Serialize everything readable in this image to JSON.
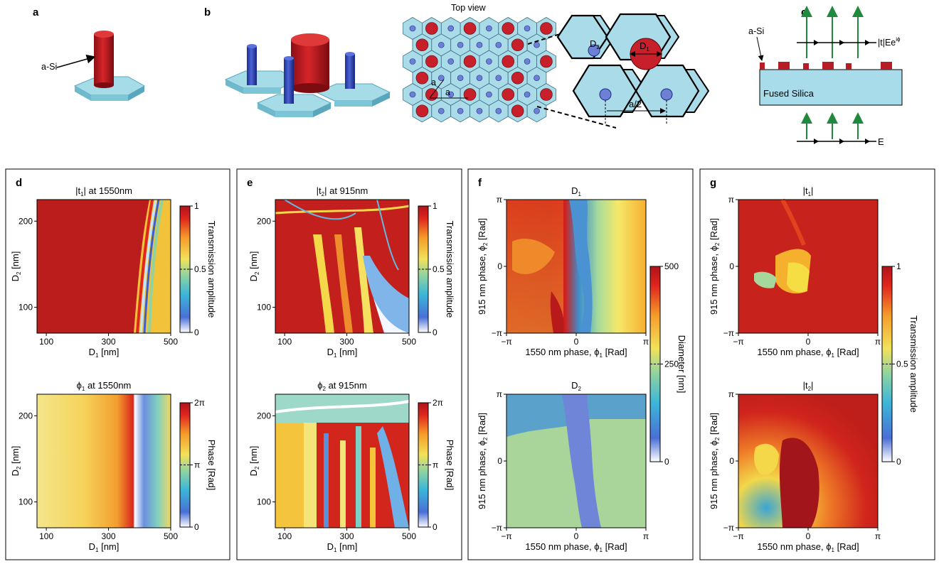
{
  "top": {
    "panel_a": {
      "letter": "a",
      "label": "a-Si"
    },
    "panel_b": {
      "letter": "b",
      "title": "Top view",
      "lattice_a1": "a",
      "lattice_a2": "a",
      "zoom_d2": "D",
      "zoom_d2_sub": "2",
      "zoom_d1": "D",
      "zoom_d1_sub": "1",
      "zoom_a2": "a/2"
    },
    "panel_c": {
      "letter": "c",
      "label_si": "a-Si",
      "out_label": "|t|Ee",
      "out_sup": "iϕ",
      "substrate": "Fused Silica",
      "in_label": "E"
    }
  },
  "panels": {
    "d": {
      "letter": "d",
      "top": {
        "title_pre": "|t",
        "title_sub": "1",
        "title_post": "| at 1550nm",
        "xticks": [
          "100",
          "300",
          "500"
        ],
        "yticks": [
          "200",
          "100"
        ],
        "xlabel": "D",
        "xlabel_sub": "1",
        "xlabel_post": " [nm]",
        "ylabel": "D",
        "ylabel_sub": "2",
        "ylabel_post": " [nm]",
        "cbar_ticks": [
          "1",
          "0.5",
          "0"
        ],
        "cbar_label": "Transmission amplitude"
      },
      "bottom": {
        "title_pre": "ϕ",
        "title_sub": "1",
        "title_post": " at 1550nm",
        "xticks": [
          "100",
          "300",
          "500"
        ],
        "yticks": [
          "200",
          "100"
        ],
        "xlabel": "D",
        "xlabel_sub": "1",
        "xlabel_post": " [nm]",
        "ylabel": "D",
        "ylabel_sub": "2",
        "ylabel_post": " [nm]",
        "cbar_ticks": [
          "2π",
          "π",
          "0"
        ],
        "cbar_label": "Phase [Rad]"
      }
    },
    "e": {
      "letter": "e",
      "top": {
        "title_pre": "|t",
        "title_sub": "2",
        "title_post": "| at  915nm",
        "xticks": [
          "100",
          "300",
          "500"
        ],
        "yticks": [
          "200",
          "100"
        ],
        "xlabel": "D",
        "xlabel_sub": "1",
        "xlabel_post": " [nm]",
        "ylabel": "D",
        "ylabel_sub": "2",
        "ylabel_post": " [nm]",
        "cbar_ticks": [
          "1",
          "0.5",
          "0"
        ],
        "cbar_label": "Transmission amplitude"
      },
      "bottom": {
        "title_pre": "ϕ",
        "title_sub": "2",
        "title_post": " at 915nm",
        "xticks": [
          "100",
          "300",
          "500"
        ],
        "yticks": [
          "200",
          "100"
        ],
        "xlabel": "D",
        "xlabel_sub": "1",
        "xlabel_post": " [nm]",
        "ylabel": "D",
        "ylabel_sub": "2",
        "ylabel_post": " [nm]",
        "cbar_ticks": [
          "2π",
          "π",
          "0"
        ],
        "cbar_label": "Phase [Rad]"
      }
    },
    "f": {
      "letter": "f",
      "top": {
        "title_pre": "D",
        "title_sub": "1",
        "title_post": "",
        "xticks": [
          "−π",
          "0",
          "π"
        ],
        "yticks": [
          "π",
          "0",
          "−π"
        ],
        "xlabel": "1550 nm phase, ϕ",
        "xlabel_sub": "1",
        "xlabel_post": " [Rad]",
        "ylabel": "915 nm phase, ϕ",
        "ylabel_sub": "2",
        "ylabel_post": " [Rad]"
      },
      "bottom": {
        "title_pre": "D",
        "title_sub": "2",
        "title_post": "",
        "xticks": [
          "−π",
          "0",
          "π"
        ],
        "yticks": [
          "π",
          "0",
          "−π"
        ],
        "xlabel": "1550 nm phase, ϕ",
        "xlabel_sub": "1",
        "xlabel_post": " [Rad]",
        "ylabel": "915 nm phase, ϕ",
        "ylabel_sub": "2",
        "ylabel_post": " [Rad]"
      },
      "cbar_ticks": [
        "500",
        "250",
        "0"
      ],
      "cbar_label": "Diameter [nm]"
    },
    "g": {
      "letter": "g",
      "top": {
        "title_pre": "|t",
        "title_sub": "1",
        "title_post": "|",
        "xticks": [
          "−π",
          "0",
          "π"
        ],
        "yticks": [
          "π",
          "0",
          "−π"
        ],
        "xlabel": "1550 nm phase, ϕ",
        "xlabel_sub": "1",
        "xlabel_post": " [Rad]",
        "ylabel": "915 nm phase, ϕ",
        "ylabel_sub": "2",
        "ylabel_post": " [Rad]"
      },
      "bottom": {
        "title_pre": "|t",
        "title_sub": "2",
        "title_post": "|",
        "xticks": [
          "−π",
          "0",
          "π"
        ],
        "yticks": [
          "π",
          "0",
          "−π"
        ],
        "xlabel": "1550 nm phase, ϕ",
        "xlabel_sub": "1",
        "xlabel_post": " [Rad]",
        "ylabel": "915 nm phase, ϕ",
        "ylabel_sub": "2",
        "ylabel_post": " [Rad]"
      },
      "cbar_ticks": [
        "1",
        "0.5",
        "0"
      ],
      "cbar_label": "Transmission amplitude"
    }
  },
  "chart_data": [
    {
      "type": "heatmap",
      "panel": "d-top",
      "title": "|t1| at 1550nm",
      "xlabel": "D1 [nm]",
      "ylabel": "D2 [nm]",
      "xlim": [
        70,
        500
      ],
      "ylim": [
        70,
        225
      ],
      "colorbar": {
        "label": "Transmission amplitude",
        "range": [
          0,
          1
        ]
      }
    },
    {
      "type": "heatmap",
      "panel": "d-bottom",
      "title": "ϕ1 at 1550nm",
      "xlabel": "D1 [nm]",
      "ylabel": "D2 [nm]",
      "xlim": [
        70,
        500
      ],
      "ylim": [
        70,
        225
      ],
      "colorbar": {
        "label": "Phase [Rad]",
        "range": [
          0,
          6.283
        ]
      }
    },
    {
      "type": "heatmap",
      "panel": "e-top",
      "title": "|t2| at 915nm",
      "xlabel": "D1 [nm]",
      "ylabel": "D2 [nm]",
      "xlim": [
        70,
        500
      ],
      "ylim": [
        70,
        225
      ],
      "colorbar": {
        "label": "Transmission amplitude",
        "range": [
          0,
          1
        ]
      }
    },
    {
      "type": "heatmap",
      "panel": "e-bottom",
      "title": "ϕ2 at 915nm",
      "xlabel": "D1 [nm]",
      "ylabel": "D2 [nm]",
      "xlim": [
        70,
        500
      ],
      "ylim": [
        70,
        225
      ],
      "colorbar": {
        "label": "Phase [Rad]",
        "range": [
          0,
          6.283
        ]
      }
    },
    {
      "type": "heatmap",
      "panel": "f-top",
      "title": "D1",
      "xlabel": "1550 nm phase, ϕ1 [Rad]",
      "ylabel": "915 nm phase, ϕ2 [Rad]",
      "xlim": [
        -3.1416,
        3.1416
      ],
      "ylim": [
        -3.1416,
        3.1416
      ],
      "colorbar": {
        "label": "Diameter [nm]",
        "range": [
          0,
          500
        ]
      }
    },
    {
      "type": "heatmap",
      "panel": "f-bottom",
      "title": "D2",
      "xlabel": "1550 nm phase, ϕ1 [Rad]",
      "ylabel": "915 nm phase, ϕ2 [Rad]",
      "xlim": [
        -3.1416,
        3.1416
      ],
      "ylim": [
        -3.1416,
        3.1416
      ],
      "colorbar": {
        "label": "Diameter [nm]",
        "range": [
          0,
          500
        ]
      }
    },
    {
      "type": "heatmap",
      "panel": "g-top",
      "title": "|t1|",
      "xlabel": "1550 nm phase, ϕ1 [Rad]",
      "ylabel": "915 nm phase, ϕ2 [Rad]",
      "xlim": [
        -3.1416,
        3.1416
      ],
      "ylim": [
        -3.1416,
        3.1416
      ],
      "colorbar": {
        "label": "Transmission amplitude",
        "range": [
          0,
          1
        ]
      }
    },
    {
      "type": "heatmap",
      "panel": "g-bottom",
      "title": "|t2|",
      "xlabel": "1550 nm phase, ϕ1 [Rad]",
      "ylabel": "915 nm phase, ϕ2 [Rad]",
      "xlim": [
        -3.1416,
        3.1416
      ],
      "ylim": [
        -3.1416,
        3.1416
      ],
      "colorbar": {
        "label": "Transmission amplitude",
        "range": [
          0,
          1
        ]
      }
    }
  ]
}
